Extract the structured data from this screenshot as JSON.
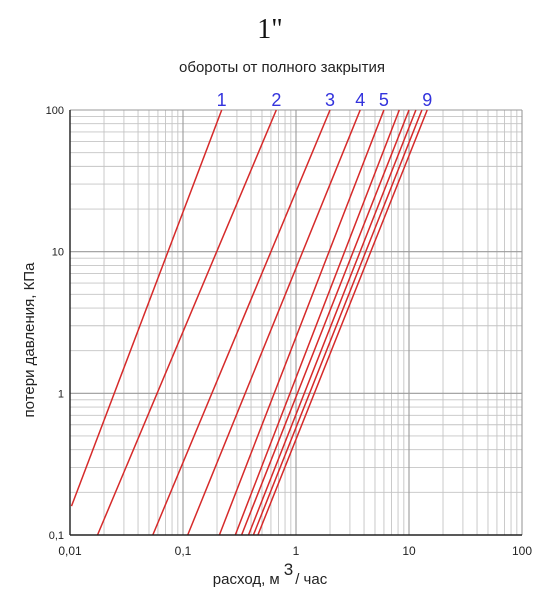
{
  "chart_data": {
    "type": "line",
    "title": "1\"",
    "subtitle": "обороты от полного закрытия",
    "xlabel_main": "расход, м",
    "xlabel_sup": "3",
    "xlabel_tail": "/ час",
    "ylabel": "потери давления, КПа",
    "xscale": "log",
    "yscale": "log",
    "xlim": [
      0.01,
      100
    ],
    "ylim": [
      0.1,
      100
    ],
    "x_ticks": [
      {
        "value": 0.01,
        "label": "0,01"
      },
      {
        "value": 0.1,
        "label": "0,1"
      },
      {
        "value": 1,
        "label": "1"
      },
      {
        "value": 10,
        "label": "10"
      },
      {
        "value": 100,
        "label": "100"
      }
    ],
    "y_ticks": [
      {
        "value": 0.1,
        "label": "0,1"
      },
      {
        "value": 1,
        "label": "1"
      },
      {
        "value": 10,
        "label": "10"
      },
      {
        "value": 100,
        "label": "100"
      }
    ],
    "grid": true,
    "line_color": "#d62a2a",
    "label_color": "#3333dd",
    "series": [
      {
        "name": "1",
        "points": [
          [
            0.0103,
            0.16
          ],
          [
            0.22,
            100
          ]
        ],
        "labeled": true
      },
      {
        "name": "2",
        "points": [
          [
            0.0175,
            0.1
          ],
          [
            0.67,
            100
          ]
        ],
        "labeled": true
      },
      {
        "name": "",
        "points": [
          [
            0.054,
            0.1
          ],
          [
            2.0,
            100
          ]
        ],
        "labeled": false
      },
      {
        "name": "3",
        "points": [
          [
            0.11,
            0.1
          ],
          [
            3.7,
            100
          ]
        ],
        "labeled": false
      },
      {
        "name": "4",
        "points": [
          [
            0.21,
            0.1
          ],
          [
            6.0,
            100
          ]
        ],
        "labeled": false
      },
      {
        "name": "5",
        "points": [
          [
            0.29,
            0.1
          ],
          [
            8.2,
            100
          ]
        ],
        "labeled": false
      },
      {
        "name": "",
        "points": [
          [
            0.33,
            0.1
          ],
          [
            10.0,
            100
          ]
        ],
        "labeled": false
      },
      {
        "name": "",
        "points": [
          [
            0.38,
            0.1
          ],
          [
            11.5,
            100
          ]
        ],
        "labeled": false
      },
      {
        "name": "",
        "points": [
          [
            0.42,
            0.1
          ],
          [
            13.0,
            100
          ]
        ],
        "labeled": false
      },
      {
        "name": "9",
        "points": [
          [
            0.46,
            0.1
          ],
          [
            14.5,
            100
          ]
        ],
        "labeled": false
      }
    ],
    "top_labels": [
      {
        "text": "1",
        "x": 0.22
      },
      {
        "text": "2",
        "x": 0.67
      },
      {
        "text": "3",
        "x": 2.0
      },
      {
        "text": "4",
        "x": 3.7
      },
      {
        "text": "5",
        "x": 6.0
      },
      {
        "text": "9",
        "x": 14.5
      }
    ]
  }
}
